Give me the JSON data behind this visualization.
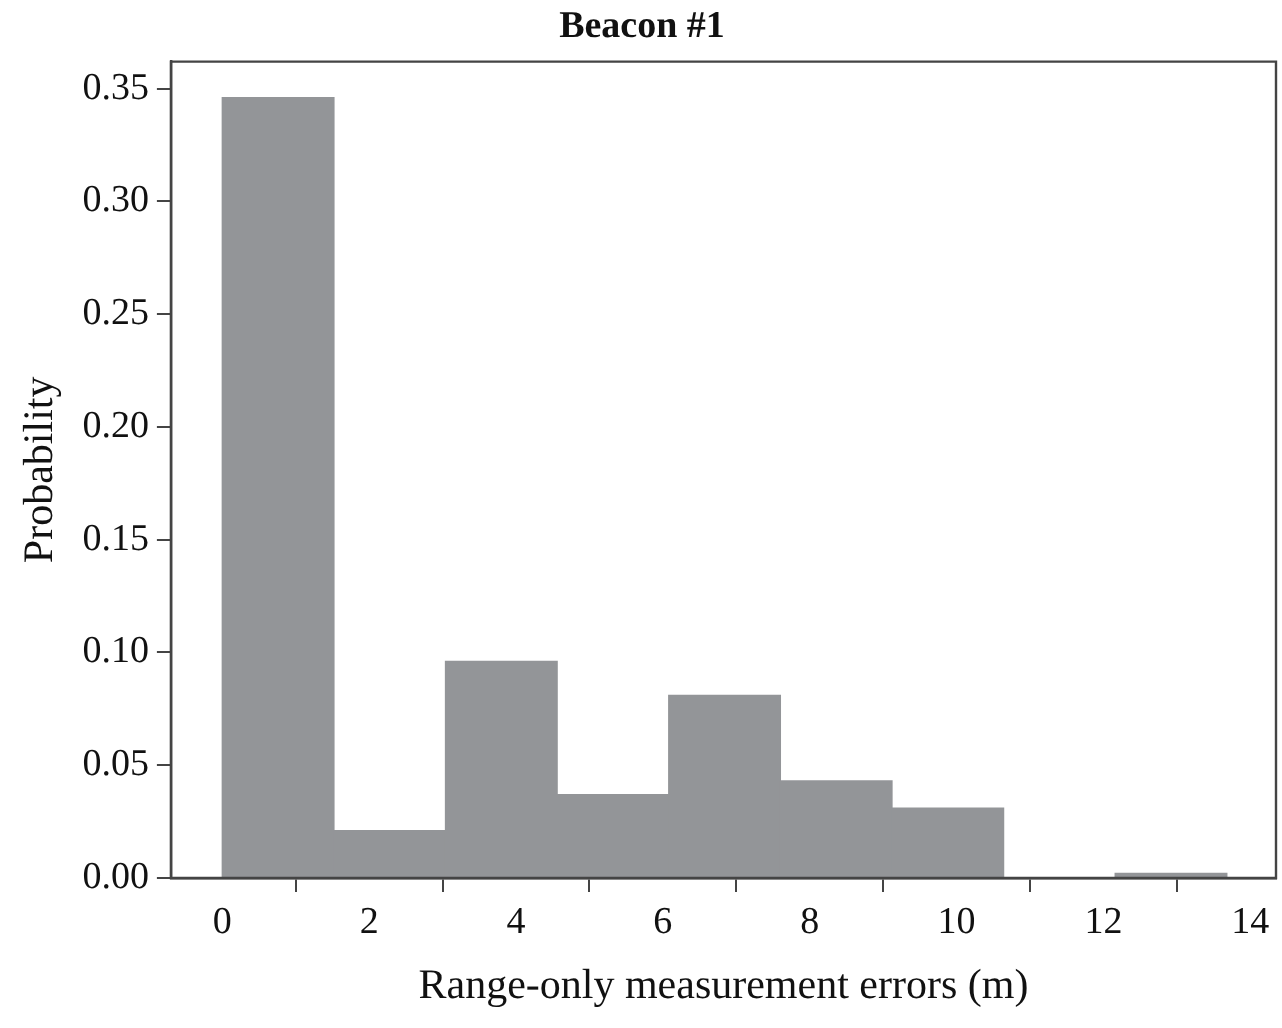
{
  "chart_data": {
    "type": "histogram",
    "title": "Beacon #1",
    "xlabel": "Range-only measurement errors (m)",
    "ylabel": "Probability",
    "bins": [
      0,
      1.52,
      3.04,
      4.56,
      6.08,
      7.6,
      9.12,
      10.64,
      12.16,
      13.68
    ],
    "values": [
      0.346,
      0.021,
      0.096,
      0.037,
      0.081,
      0.043,
      0.031,
      0,
      0.002
    ],
    "color": "#939598",
    "xlim": [
      -0.7,
      14.35
    ],
    "xticks": [
      0,
      2,
      4,
      6,
      8,
      10,
      12,
      14
    ],
    "ylim": [
      0,
      0.362
    ],
    "yticks": [
      {
        "value": 0,
        "label": "0.00"
      },
      {
        "value": 0.05,
        "label": "0.05"
      },
      {
        "value": 0.1,
        "label": "0.10"
      },
      {
        "value": 0.15,
        "label": "0.15"
      },
      {
        "value": 0.2,
        "label": "0.20"
      },
      {
        "value": 0.25,
        "label": "0.25"
      },
      {
        "value": 0.3,
        "label": "0.30"
      },
      {
        "value": 0.35,
        "label": "0.35"
      }
    ],
    "grid": false,
    "legend": false
  }
}
